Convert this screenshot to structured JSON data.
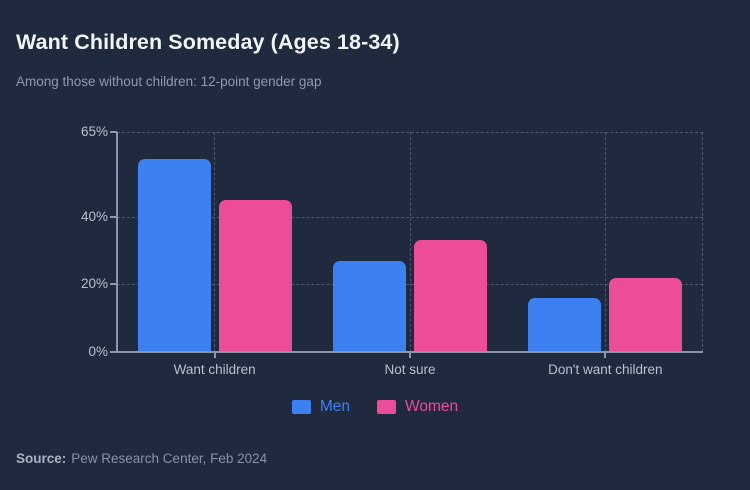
{
  "header": {
    "title": "Want Children Someday (Ages 18-34)",
    "subtitle": "Among those without children: 12-point gender gap"
  },
  "chart_data": {
    "type": "bar",
    "title": "Want Children Someday (Ages 18-34)",
    "subtitle": "Among those without children: 12-point gender gap",
    "categories": [
      "Want children",
      "Not sure",
      "Don't want children"
    ],
    "series": [
      {
        "name": "Men",
        "color": "#3d80f2",
        "values": [
          57,
          27,
          16
        ]
      },
      {
        "name": "Women",
        "color": "#ec4c98",
        "values": [
          45,
          33,
          22
        ]
      }
    ],
    "xlabel": "",
    "ylabel": "",
    "ylim": [
      0,
      65
    ],
    "yticks": [
      {
        "value": 0,
        "label": "0%"
      },
      {
        "value": 20,
        "label": "20%"
      },
      {
        "value": 40,
        "label": "40%"
      },
      {
        "value": 65,
        "label": "65%"
      }
    ],
    "grid": "dashed",
    "legend_position": "bottom"
  },
  "legend": {
    "items": [
      {
        "label": "Men",
        "color": "#3d80f2"
      },
      {
        "label": "Women",
        "color": "#ec4c98"
      }
    ]
  },
  "footer": {
    "source_label": "Source:",
    "source_text": "Pew Research Center, Feb 2024"
  },
  "colors": {
    "background": "#1f2a3e",
    "title_text": "#f2f5f9",
    "subtitle_text": "#8e99ad",
    "axis": "#8d97a9",
    "tick_label": "#b7c0ce",
    "men": "#3d80f2",
    "women": "#ec4c98",
    "source_label": "#a7b2c3",
    "source_text": "#8692a6"
  }
}
